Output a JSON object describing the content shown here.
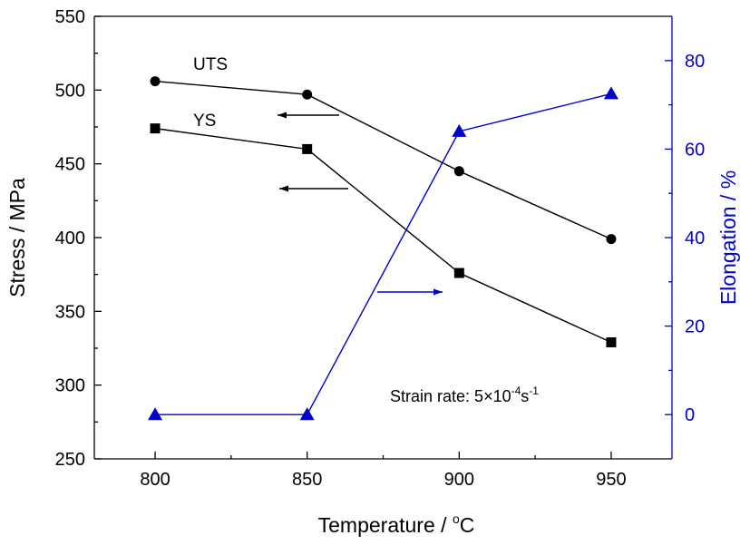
{
  "chart_data": {
    "type": "line",
    "xlabel": "Temperature / ",
    "xlabel_unit": "C",
    "xlabel_degree": "o",
    "ylabel_left": "Stress / MPa",
    "ylabel_right": "Elongation / %",
    "x": [
      800,
      850,
      900,
      950
    ],
    "xlim": [
      780,
      970
    ],
    "ylim_left": [
      250,
      550
    ],
    "ylim_right": [
      -10,
      90
    ],
    "x_ticks": [
      800,
      850,
      900,
      950
    ],
    "y_ticks_left": [
      250,
      300,
      350,
      400,
      450,
      500,
      550
    ],
    "y_ticks_right": [
      0,
      20,
      40,
      60,
      80
    ],
    "series": [
      {
        "name": "UTS",
        "axis": "left",
        "marker": "circle",
        "color": "#000000",
        "values": [
          506,
          497,
          445,
          399
        ]
      },
      {
        "name": "YS",
        "axis": "left",
        "marker": "square",
        "color": "#000000",
        "values": [
          474,
          460,
          376,
          329
        ]
      },
      {
        "name": "",
        "axis": "right",
        "marker": "triangle",
        "color": "#0000cc",
        "values": [
          0,
          0,
          64,
          72.5
        ]
      }
    ],
    "annotation": {
      "prefix": "Strain rate: 5",
      "times": "×",
      "base": "10",
      "exp1": "-4",
      "unit": "s",
      "exp2": "-1"
    },
    "arrows": [
      {
        "direction": "left",
        "target": "left-axis",
        "color": "#000000"
      },
      {
        "direction": "left",
        "target": "left-axis",
        "color": "#000000"
      },
      {
        "direction": "right",
        "target": "right-axis",
        "color": "#0000cc"
      }
    ],
    "colors": {
      "left_axis": "#000000",
      "right_axis": "#0000cc"
    }
  }
}
